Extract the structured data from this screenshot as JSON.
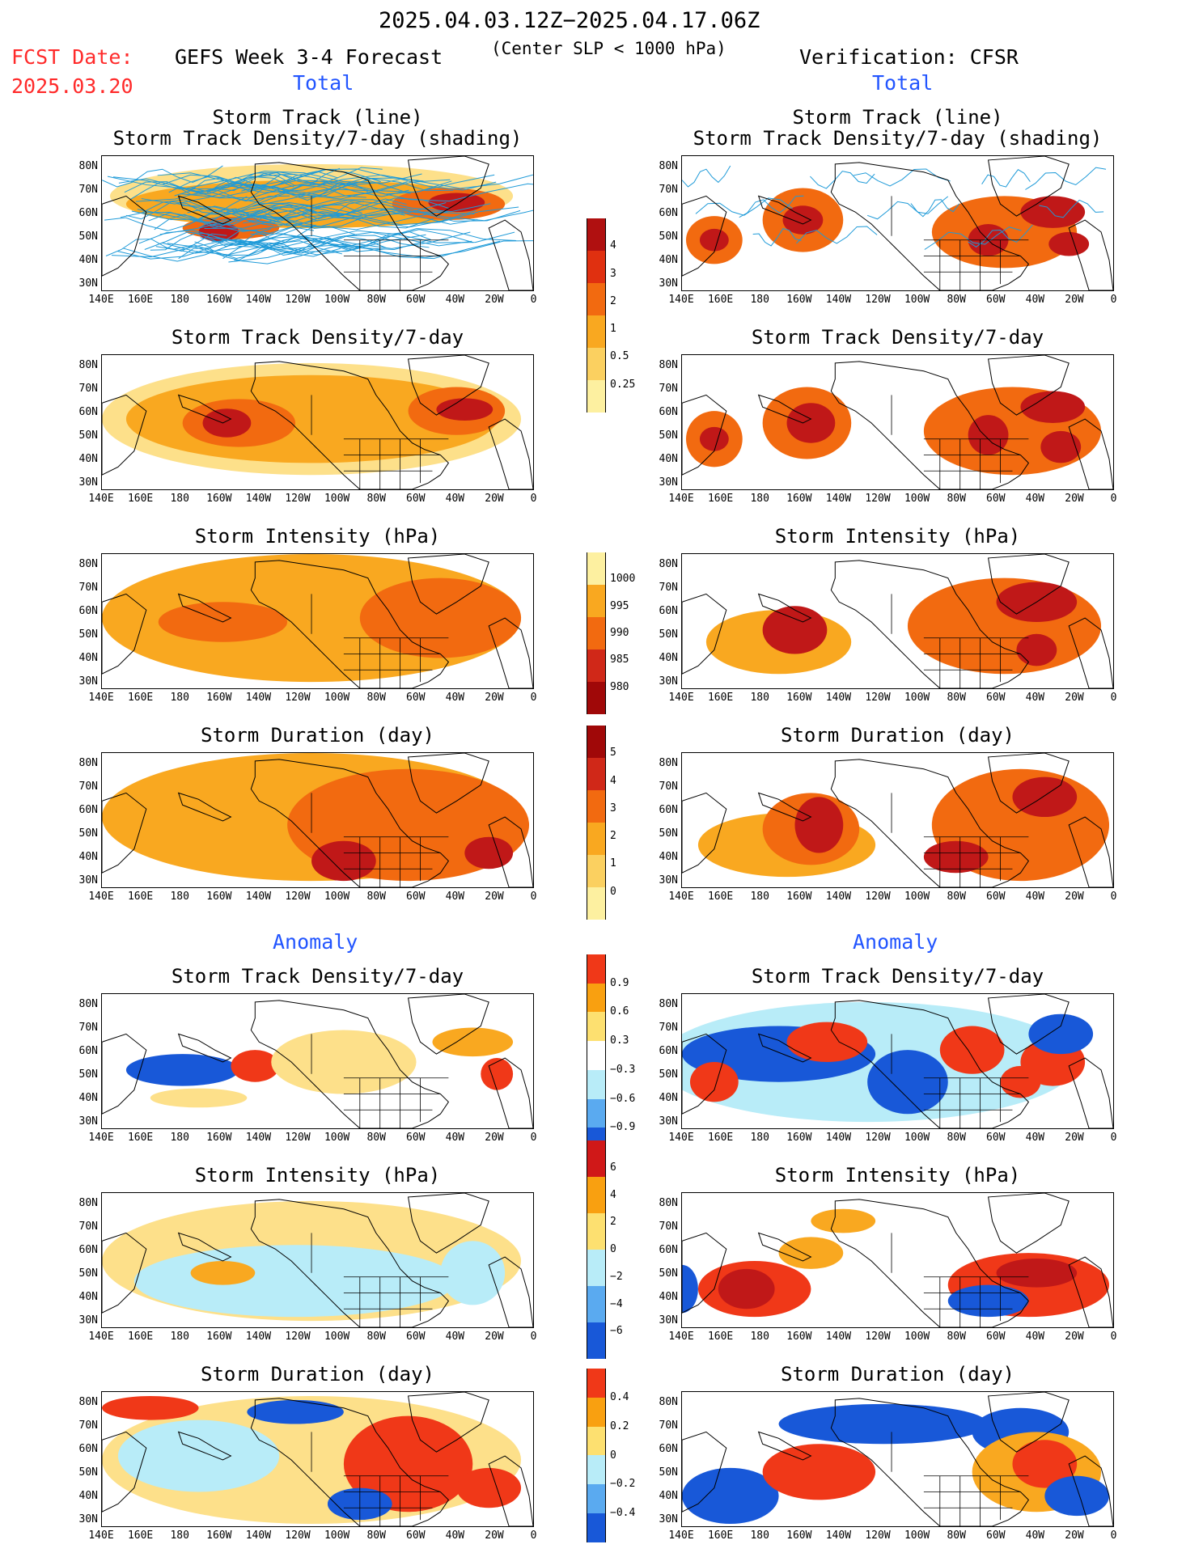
{
  "header": {
    "period": "2025.04.03.12Z−2025.04.17.06Z",
    "subtitle": "(Center SLP < 1000 hPa)",
    "forecast_label": "GEFS Week 3-4 Forecast",
    "verification_label": "Verification: CFSR",
    "fcst_date_label": "FCST Date:",
    "fcst_date_value": "2025.03.20"
  },
  "sections": {
    "total_left": "Total",
    "total_right": "Total",
    "anomaly_left": "Anomaly",
    "anomaly_right": "Anomaly"
  },
  "panel_titles": {
    "p1a": "Storm Track (line)",
    "p1b": "Storm Track Density/7-day (shading)",
    "p2": "Storm Track Density/7-day",
    "p3": "Storm Intensity (hPa)",
    "p4": "Storm Duration (day)",
    "p5": "Storm Track Density/7-day",
    "p6": "Storm Intensity (hPa)",
    "p7": "Storm Duration (day)"
  },
  "axes": {
    "lat_labels": [
      "80N",
      "70N",
      "60N",
      "50N",
      "40N",
      "30N"
    ],
    "lon_labels": [
      "140E",
      "160E",
      "180",
      "160W",
      "140W",
      "120W",
      "100W",
      "80W",
      "60W",
      "40W",
      "20W",
      "0"
    ]
  },
  "colorbars": {
    "density_total": {
      "ticks": [
        "4",
        "3",
        "2",
        "1",
        "0.5",
        "0.25"
      ],
      "colors": [
        "#b01010",
        "#e03010",
        "#f26a10",
        "#f9a820",
        "#fbd060",
        "#fdf0a0"
      ]
    },
    "intensity_total": {
      "ticks": [
        "1000",
        "995",
        "990",
        "985",
        "980"
      ],
      "colors": [
        "#fdf0a0",
        "#f9a820",
        "#f26a10",
        "#d02818",
        "#a00808"
      ]
    },
    "duration_total": {
      "ticks": [
        "5",
        "4",
        "3",
        "2",
        "1",
        "0"
      ],
      "colors": [
        "#a00808",
        "#d02818",
        "#f26a10",
        "#f9a820",
        "#fbd060",
        "#fdf0a0"
      ]
    },
    "density_anom": {
      "ticks": [
        "0.9",
        "0.6",
        "0.3",
        "−0.3",
        "−0.6",
        "−0.9"
      ],
      "colors": [
        "#f03818",
        "#f9a010",
        "#fde070",
        "#ffffff",
        "#b8ecf8",
        "#5aaaf0",
        "#1858d8"
      ]
    },
    "intensity_anom": {
      "ticks": [
        "6",
        "4",
        "2",
        "0",
        "−2",
        "−4",
        "−6"
      ],
      "colors": [
        "#d01818",
        "#f9a010",
        "#fde070",
        "#b8ecf8",
        "#5aaaf0",
        "#1858d8"
      ]
    },
    "duration_anom": {
      "ticks": [
        "0.4",
        "0.2",
        "0",
        "−0.2",
        "−0.4"
      ],
      "colors": [
        "#f03818",
        "#f9a010",
        "#fde070",
        "#b8ecf8",
        "#5aaaf0",
        "#1858d8"
      ]
    }
  },
  "palette": {
    "map_outline": "#000000",
    "track_line": "#1e9ad8",
    "density_light": "#fde08a",
    "density_mid": "#f9a820",
    "density_high": "#f26a10",
    "density_max": "#c01818",
    "anom_blue": "#1858d8",
    "anom_lightblue": "#b8ecf8",
    "anom_red": "#f03818"
  }
}
